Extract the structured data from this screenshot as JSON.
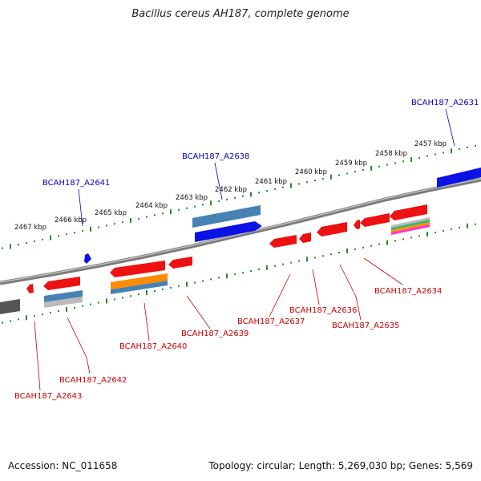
{
  "title": "Bacillus cereus AH187, complete genome",
  "footer": {
    "accession": "Accession: NC_011658",
    "topology": "Topology: circular; Length: 5,269,030 bp; Genes: 5,569"
  },
  "colors": {
    "forward_gene": "#0a12e6",
    "reverse_gene": "#ee1111",
    "backbone": "#888888",
    "tick": "#2a8a2a",
    "label_forward": "#0000cc",
    "label_reverse": "#cc0000"
  },
  "kbp_ticks": [
    "2467 kbp",
    "2466 kbp",
    "2465 kbp",
    "2464 kbp",
    "2463 kbp",
    "2462 kbp",
    "2461 kbp",
    "2460 kbp",
    "2459 kbp",
    "2458 kbp",
    "2457 kbp"
  ],
  "forward_labels": [
    "BCAH187_A2641",
    "BCAH187_A2638",
    "BCAH187_A2631"
  ],
  "reverse_labels": [
    "BCAH187_A2643",
    "BCAH187_A2642",
    "BCAH187_A2640",
    "BCAH187_A2639",
    "BCAH187_A2637",
    "BCAH187_A2636",
    "BCAH187_A2635",
    "BCAH187_A2634"
  ]
}
